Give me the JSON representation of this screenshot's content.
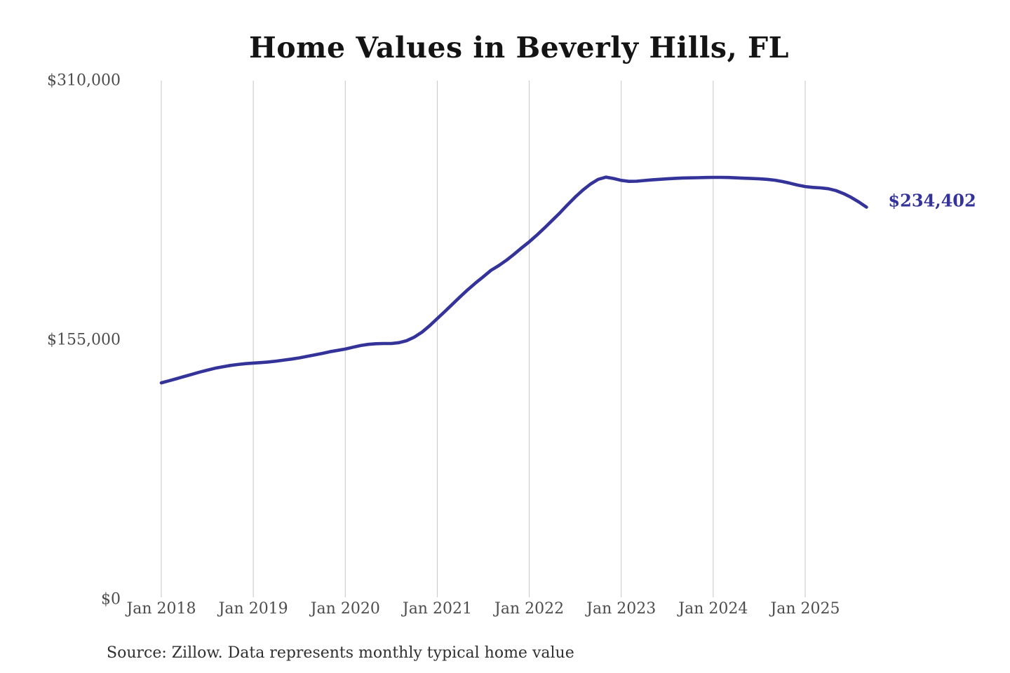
{
  "title": "Home Values in Beverly Hills, FL",
  "source_note": "Source: Zillow. Data represents monthly typical home value",
  "current_value_label": "$234,402",
  "colors": {
    "line": "#333399",
    "grid": "#c6c6c6",
    "tick_text": "#4d4d4d",
    "title_text": "#141414"
  },
  "chart_data": {
    "type": "line",
    "title": "Home Values in Beverly Hills, FL",
    "xlabel": "",
    "ylabel": "",
    "ylim": [
      0,
      310000
    ],
    "grid": "vertical-only",
    "legend": "none",
    "y_ticks": [
      {
        "label": "$310,000",
        "value": 310000
      },
      {
        "label": "$155,000",
        "value": 155000
      },
      {
        "label": "$0",
        "value": 0
      }
    ],
    "x_ticks": [
      {
        "label": "Jan 2018",
        "month_index": 0
      },
      {
        "label": "Jan 2019",
        "month_index": 12
      },
      {
        "label": "Jan 2020",
        "month_index": 24
      },
      {
        "label": "Jan 2021",
        "month_index": 36
      },
      {
        "label": "Jan 2022",
        "month_index": 48
      },
      {
        "label": "Jan 2023",
        "month_index": 60
      },
      {
        "label": "Jan 2024",
        "month_index": 72
      },
      {
        "label": "Jan 2025",
        "month_index": 84
      }
    ],
    "series": [
      {
        "name": "Monthly typical home value",
        "start": "Jan 2018",
        "end": "Sep 2025",
        "frequency": "monthly",
        "values": [
          129400,
          130600,
          131900,
          133200,
          134500,
          135800,
          137000,
          138100,
          139000,
          139800,
          140400,
          140900,
          141200,
          141500,
          141900,
          142400,
          143000,
          143600,
          144300,
          145200,
          146100,
          147000,
          148000,
          148800,
          149600,
          150700,
          151700,
          152400,
          152800,
          152900,
          152900,
          153400,
          154600,
          156700,
          159700,
          163500,
          167800,
          172100,
          176500,
          180900,
          185100,
          189100,
          192800,
          196600,
          199400,
          202600,
          206200,
          210000,
          213700,
          217700,
          222000,
          226500,
          231000,
          235800,
          240400,
          244600,
          248200,
          251000,
          252300,
          251500,
          250400,
          249800,
          249900,
          250300,
          250700,
          251000,
          251300,
          251600,
          251800,
          251900,
          252000,
          252100,
          252200,
          252200,
          252100,
          251900,
          251700,
          251500,
          251300,
          251000,
          250500,
          249700,
          248700,
          247600,
          246700,
          246200,
          245900,
          245400,
          244300,
          242500,
          240200,
          237500,
          234402
        ]
      }
    ],
    "end_value": 234402
  }
}
